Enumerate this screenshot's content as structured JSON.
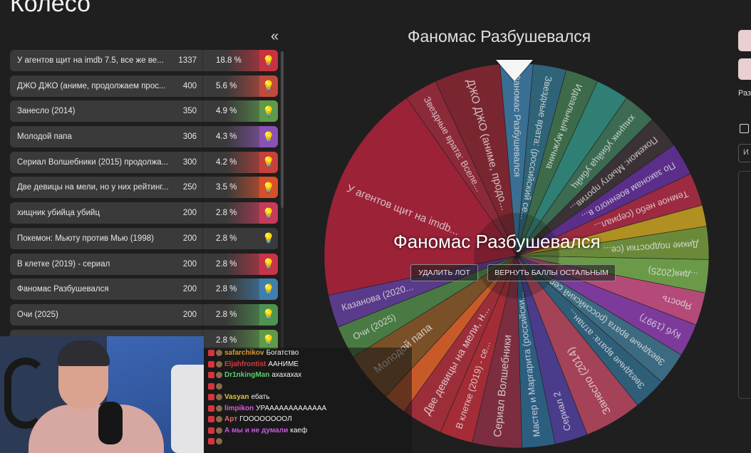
{
  "page": {
    "title": "Колесо",
    "collapse_glyph": "«"
  },
  "lots": [
    {
      "name": "У агентов щит на imdb 7.5, все же ве...",
      "amount": "1337",
      "percent": "18.8 %",
      "color": "#c8323f"
    },
    {
      "name": "ДЖО ДЖО (аниме, продолжаем прос...",
      "amount": "400",
      "percent": "5.6 %",
      "color": "#c24a3c"
    },
    {
      "name": "Занесло (2014)",
      "amount": "350",
      "percent": "4.9 %",
      "color": "#5e9a4a"
    },
    {
      "name": "Молодой папа",
      "amount": "306",
      "percent": "4.3 %",
      "color": "#8a52b2"
    },
    {
      "name": "Сериал Волшебники (2015) продолжа...",
      "amount": "300",
      "percent": "4.2 %",
      "color": "#c8403a"
    },
    {
      "name": "Две девицы на мели, но у них рейтинг...",
      "amount": "250",
      "percent": "3.5 %",
      "color": "#d8502a"
    },
    {
      "name": "хищник убийца убийц",
      "amount": "200",
      "percent": "2.8 %",
      "color": "#c63a5a"
    },
    {
      "name": "Покемон: Мьюту против Мью (1998)",
      "amount": "200",
      "percent": "2.8 %",
      "color": "#3a3a3a"
    },
    {
      "name": "В клетке (2019) - сериал",
      "amount": "200",
      "percent": "2.8 %",
      "color": "#c83448"
    },
    {
      "name": "Фаномас Разбушевался",
      "amount": "200",
      "percent": "2.8 %",
      "color": "#3f7fae"
    },
    {
      "name": "Очи (2025)",
      "amount": "200",
      "percent": "2.8 %",
      "color": "#4e9450"
    },
    {
      "name": "",
      "amount": "",
      "percent": "2.8 %",
      "color": "#5e9a4a"
    }
  ],
  "wheel": {
    "caption": "Фаномас Разбушевался",
    "winner": "Фаномас Разбушевался",
    "delete_button": "УДАЛИТЬ ЛОТ",
    "return_button": "ВЕРНУТЬ БАЛЛЫ ОСТАЛЬНЫМ",
    "slices": [
      {
        "label": "Фаномас Разбушевался",
        "color": "#3a6f94",
        "share": 2.8
      },
      {
        "label": "Звездные врата: (российский се...",
        "color": "#2e6378",
        "share": 2.8
      },
      {
        "label": "Идеальный мужчина",
        "color": "#3d6b4a",
        "share": 2.8
      },
      {
        "label": "",
        "color": "#2f7f74",
        "share": 2.8
      },
      {
        "label": "хищник убийца убийц",
        "color": "#3c6a52",
        "share": 2.8
      },
      {
        "label": "Покемон: Мьюту против...",
        "color": "#3a3235",
        "share": 2.8
      },
      {
        "label": "По законам военного в...",
        "color": "#5b2e8a",
        "share": 2.8
      },
      {
        "label": "Темное небо (сериал...",
        "color": "#9c2a40",
        "share": 2.8
      },
      {
        "label": "",
        "color": "#b09020",
        "share": 1.8
      },
      {
        "label": "Дикие подростки (се...",
        "color": "#6a8a3a",
        "share": 2.8
      },
      {
        "label": "...дия(2025)",
        "color": "#6a9a48",
        "share": 2.8
      },
      {
        "label": "Ярость",
        "color": "#b44a78",
        "share": 2.8
      },
      {
        "label": "Куб (1997)",
        "color": "#7c3a9a",
        "share": 2.8
      },
      {
        "label": "Звездные врата (российский сер...",
        "color": "#3c6a80",
        "share": 2.8
      },
      {
        "label": "Звездные врата: атлан...",
        "color": "#2f5e78",
        "share": 2.8
      },
      {
        "label": "Занесло (2014)",
        "color": "#a44258",
        "share": 4.9
      },
      {
        "label": "Сериал 2",
        "color": "#4a3c8a",
        "share": 2.8
      },
      {
        "label": "Мастер и Маргарита (российски...",
        "color": "#2c5e80",
        "share": 2.8
      },
      {
        "label": "Сериал Волшебники",
        "color": "#7c2e40",
        "share": 4.2
      },
      {
        "label": "В клетке (2019) - се...",
        "color": "#a32c36",
        "share": 2.8
      },
      {
        "label": "Две девицы на мели, н...",
        "color": "#9c2e3a",
        "share": 3.5
      },
      {
        "label": "",
        "color": "#c85a2a",
        "share": 2.0
      },
      {
        "label": "Молодой папа",
        "color": "#7a5028",
        "share": 4.3
      },
      {
        "label": "Очи (2025)",
        "color": "#4a7a44",
        "share": 2.8
      },
      {
        "label": "Казанова (2020...",
        "color": "#5a3a8a",
        "share": 2.8
      },
      {
        "label": "У агентов щит на imdb...",
        "color": "#9c2238",
        "share": 18.8
      },
      {
        "label": "Звездные врата: Вселе...",
        "color": "#8c2a3a",
        "share": 2.8
      },
      {
        "label": "ДЖО ДЖО (аниме, продо...",
        "color": "#7a2630",
        "share": 5.6
      }
    ]
  },
  "right_panel": {
    "label": "Раз",
    "field_text": "И"
  },
  "chat": [
    {
      "user": "safarchikov",
      "user_color": "#e09a2a",
      "message": "Богатство"
    },
    {
      "user": "Eljahfrontist",
      "user_color": "#d83a3a",
      "message": "ААНИМЕ"
    },
    {
      "user": "Dr1nkingMan",
      "user_color": "#5ad06a",
      "message": "ахахахах"
    },
    {
      "user": "",
      "user_color": "#5a7ad8",
      "message": ""
    },
    {
      "user": "Vasyan",
      "user_color": "#e0c04a",
      "message": "ебать"
    },
    {
      "user": "limpikon",
      "user_color": "#d85ad8",
      "message": "УРААААААААААААА"
    },
    {
      "user": "Арт",
      "user_color": "#e06a6a",
      "message": "ГООООООООЛ"
    },
    {
      "user": "А мы и не думали",
      "user_color": "#c85ae0",
      "message": "каеф"
    },
    {
      "user": "",
      "user_color": "#6ab0e0",
      "message": ""
    }
  ]
}
